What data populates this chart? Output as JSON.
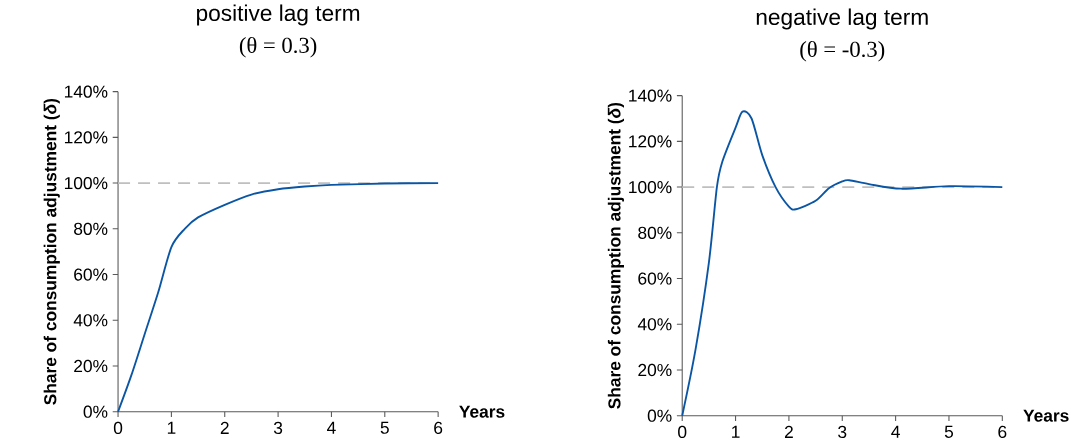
{
  "chart_data": [
    {
      "type": "line",
      "title": "positive lag term",
      "subtitle": "(θ = 0.3)",
      "xlabel": "Years",
      "ylabel": "Share of consumption adjustment (*δ*)",
      "x": [
        0,
        0.25,
        0.5,
        0.75,
        1,
        1.25,
        1.5,
        2,
        2.5,
        3,
        3.5,
        4,
        5,
        6
      ],
      "values": [
        0,
        16,
        34,
        52,
        72,
        80,
        85,
        90.5,
        95,
        97.3,
        98.5,
        99.2,
        99.8,
        100
      ],
      "color": "#0b56a4",
      "line_style": "solid",
      "marker": "none",
      "xlim": [
        0,
        6
      ],
      "xticks": [
        0,
        1,
        2,
        3,
        4,
        5,
        6
      ],
      "ylim": [
        0,
        140
      ],
      "yticks": [
        {
          "value": 0,
          "label": "0%"
        },
        {
          "value": 20,
          "label": "20%"
        },
        {
          "value": 40,
          "label": "40%"
        },
        {
          "value": 60,
          "label": "60%"
        },
        {
          "value": 80,
          "label": "80%"
        },
        {
          "value": 100,
          "label": "100%"
        },
        {
          "value": 120,
          "label": "120%"
        },
        {
          "value": 140,
          "label": "140%"
        }
      ],
      "ref_lines": [
        {
          "axis": "y",
          "value": 100,
          "color": "#bfbfbf",
          "line_style": "dashed"
        }
      ]
    },
    {
      "type": "line",
      "title": "negative lag term",
      "subtitle": "(θ = -0.3)",
      "xlabel": "Years",
      "ylabel": "Share of consumption adjustment (*δ*)",
      "x": [
        0,
        0.25,
        0.5,
        0.65,
        0.75,
        1,
        1.13,
        1.3,
        1.5,
        1.75,
        2,
        2.13,
        2.5,
        2.75,
        3,
        3.13,
        3.5,
        4.1,
        5,
        6
      ],
      "values": [
        0,
        29,
        67,
        100,
        111,
        126,
        133,
        130,
        114,
        100,
        91.5,
        90.3,
        94,
        99.5,
        102.5,
        103,
        101.3,
        99.3,
        100.4,
        100
      ],
      "color": "#0b56a4",
      "line_style": "solid",
      "marker": "none",
      "xlim": [
        0,
        6
      ],
      "xticks": [
        0,
        1,
        2,
        3,
        4,
        5,
        6
      ],
      "ylim": [
        0,
        140
      ],
      "yticks": [
        {
          "value": 0,
          "label": "0%"
        },
        {
          "value": 20,
          "label": "20%"
        },
        {
          "value": 40,
          "label": "40%"
        },
        {
          "value": 60,
          "label": "60%"
        },
        {
          "value": 80,
          "label": "80%"
        },
        {
          "value": 100,
          "label": "100%"
        },
        {
          "value": 120,
          "label": "120%"
        },
        {
          "value": 140,
          "label": "140%"
        }
      ],
      "ref_lines": [
        {
          "axis": "y",
          "value": 100,
          "color": "#bfbfbf",
          "line_style": "dashed"
        }
      ]
    }
  ]
}
